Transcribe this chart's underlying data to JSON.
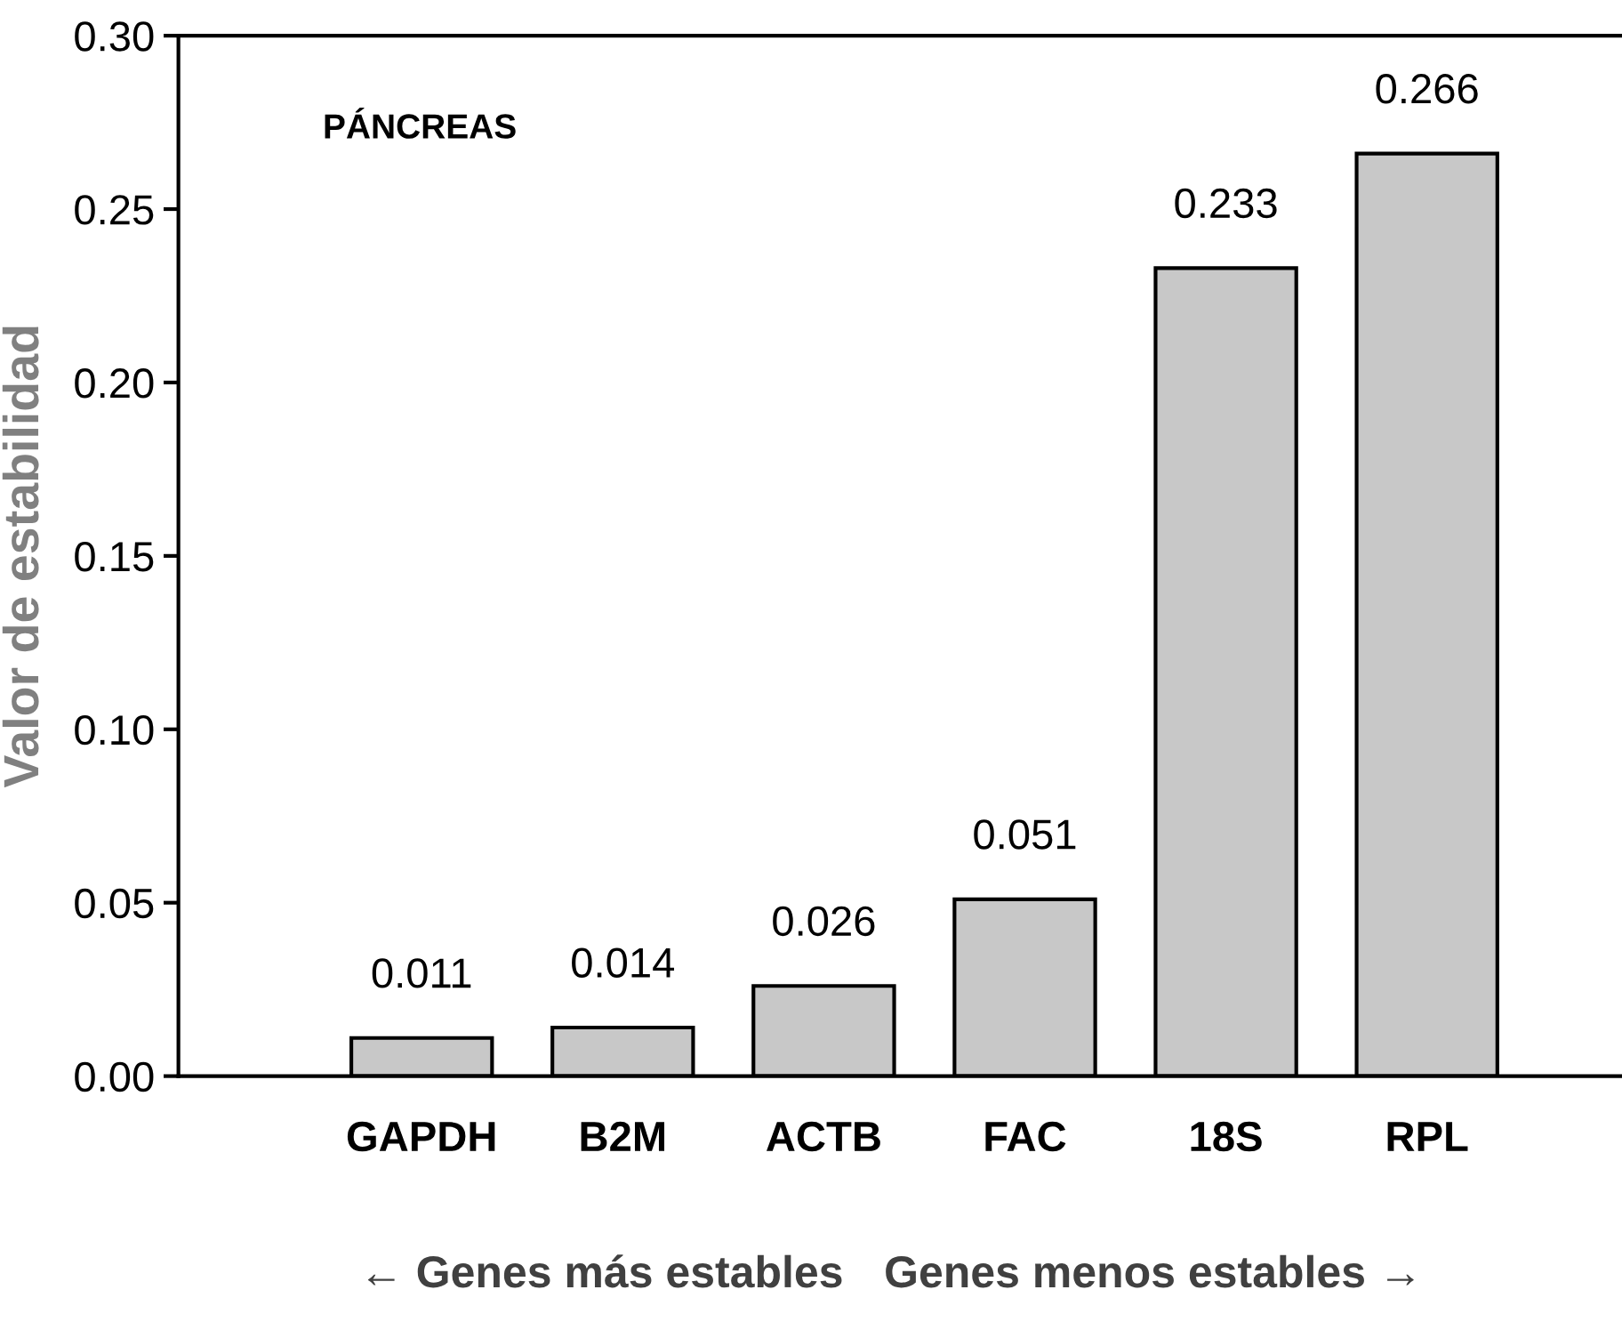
{
  "chart_data": {
    "type": "bar",
    "ylabel": "Valor de estabilidad",
    "categories": [
      "GAPDH",
      "B2M",
      "ACTB",
      "FAC",
      "18S",
      "RPL"
    ],
    "values": [
      0.011,
      0.014,
      0.026,
      0.051,
      0.233,
      0.266
    ],
    "color": "#c8c8c8",
    "ylim": [
      0,
      0.3
    ],
    "yticks": [
      {
        "value": 0,
        "label": "0.00"
      },
      {
        "value": 0.05,
        "label": "0.05"
      },
      {
        "value": 0.1,
        "label": "0.10"
      },
      {
        "value": 0.15,
        "label": "0.15"
      },
      {
        "value": 0.2,
        "label": "0.20"
      },
      {
        "value": 0.25,
        "label": "0.25"
      },
      {
        "value": 0.3,
        "label": "0.30"
      }
    ],
    "data_labels": true,
    "grid": false,
    "legend": false,
    "annotations": [
      "PÁNCREAS",
      "← Genes más estables",
      "Genes menos estables →"
    ]
  }
}
